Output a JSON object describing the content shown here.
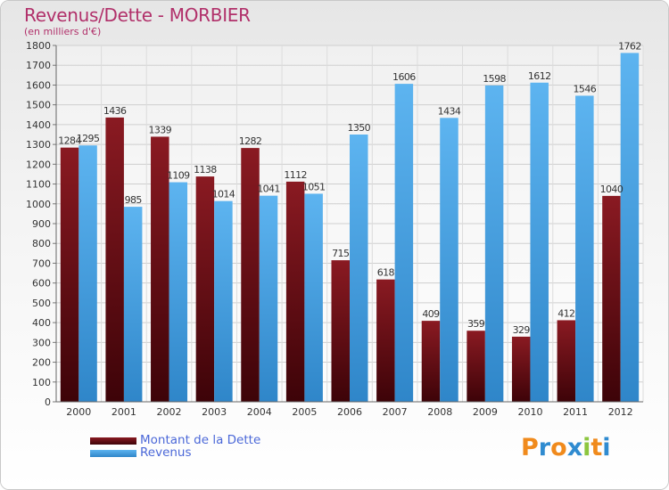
{
  "chart_data": {
    "type": "bar",
    "title": "Revenus/Dette - MORBIER",
    "subtitle": "(en milliers d'€)",
    "categories": [
      "2000",
      "2001",
      "2002",
      "2003",
      "2004",
      "2005",
      "2006",
      "2007",
      "2008",
      "2009",
      "2010",
      "2011",
      "2012"
    ],
    "series": [
      {
        "name": "Montant de la Dette",
        "color": "#6b0a14",
        "values": [
          1284,
          1436,
          1339,
          1138,
          1282,
          1112,
          715,
          618,
          409,
          359,
          329,
          412,
          1040
        ]
      },
      {
        "name": "Revenus",
        "color": "#4aa3e4",
        "values": [
          1295,
          985,
          1109,
          1014,
          1041,
          1051,
          1350,
          1606,
          1434,
          1598,
          1612,
          1546,
          1762
        ]
      }
    ],
    "ylim": [
      0,
      1800
    ],
    "yticks": [
      0,
      100,
      200,
      300,
      400,
      500,
      600,
      700,
      800,
      900,
      1000,
      1100,
      1200,
      1300,
      1400,
      1500,
      1600,
      1700,
      1800
    ],
    "grid": true,
    "legend": "bottom-left"
  },
  "brand": {
    "letters": [
      "P",
      "r",
      "o",
      "x",
      "i",
      "t",
      "i"
    ],
    "colors": [
      "#f08a1c",
      "#2f8bd0",
      "#f08a1c",
      "#2f8bd0",
      "#8cc63f",
      "#f08a1c",
      "#2f8bd0"
    ]
  }
}
